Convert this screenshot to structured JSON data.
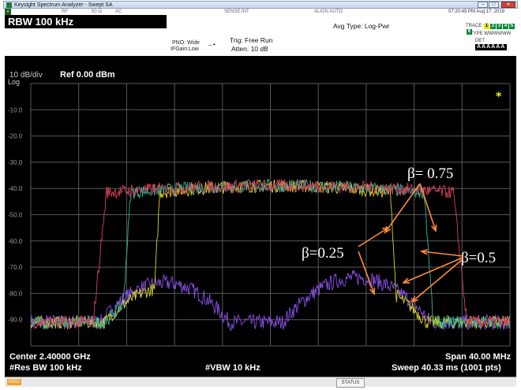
{
  "window": {
    "title": "Keysight Spectrum Analyzer - Swept SA"
  },
  "status_bar": {
    "rf": "RF",
    "impedance": "50 Ω",
    "coupling": "AC",
    "sense": "SENSE:INT",
    "align": "ALIGN AUTO",
    "datetime": "07:20:45 PM Aug 17, 2019"
  },
  "header": {
    "rbw": "RBW 100 kHz",
    "pno": "PNO: Wide",
    "ifgain": "IFGain:Low",
    "trig": "Trig: Free Run",
    "atten": "Atten: 10 dB",
    "avg_type": "Avg Type: Log-Pwr",
    "trace_label": "TRACE",
    "trace_nums": [
      "1",
      "2",
      "3",
      "4",
      "5",
      "6"
    ],
    "type_label": "TYPE",
    "type_vals": "WWWWWW",
    "det_label": "DET",
    "det_vals": "AAAAAA"
  },
  "display": {
    "scale": "10 dB/div",
    "ref": "Ref 0.00 dBm",
    "log": "Log",
    "y_ticks": [
      "-10.0",
      "-20.0",
      "-30.0",
      "-40.0",
      "-50.0",
      "-60.0",
      "-70.0",
      "-80.0",
      "-90.0"
    ],
    "marker_star": "*",
    "center": "Center 2.40000 GHz",
    "res_bw": "#Res BW 100 kHz",
    "vbw": "#VBW 10 kHz",
    "span": "Span 40.00 MHz",
    "sweep": "Sweep  40.33 ms (1001 pts)"
  },
  "annotations": {
    "beta_075": "β= 0.75",
    "beta_025": "β=0.25",
    "beta_05": "β=0.5"
  },
  "bottom_bar": {
    "msg": "MSG",
    "status": "STATUS"
  },
  "colors": {
    "trace1": "#d8405a",
    "trace2": "#30b8a0",
    "trace3": "#d8d820",
    "trace_low": "#8a50e8",
    "arrow": "#ff8c3a",
    "star": "#ffff00"
  }
}
